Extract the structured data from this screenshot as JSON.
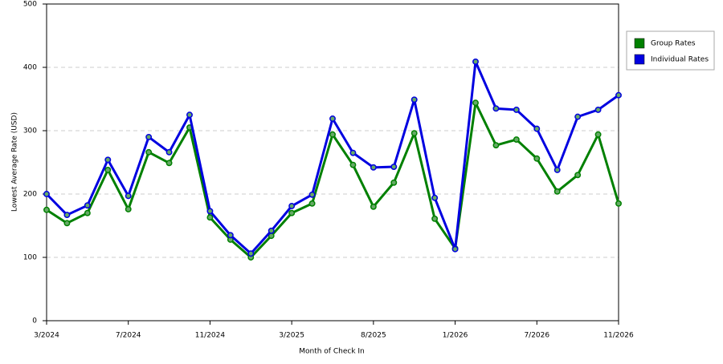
{
  "chart_data": {
    "type": "line",
    "x_label": "Month of Check In",
    "y_label": "Lowest Average Rate (USD)",
    "categories": [
      "3/2024",
      null,
      null,
      null,
      "7/2024",
      null,
      null,
      null,
      "11/2024",
      null,
      null,
      null,
      "3/2025",
      null,
      null,
      null,
      "8/2025",
      null,
      null,
      null,
      "1/2026",
      null,
      null,
      null,
      "7/2026",
      null,
      null,
      null,
      "11/2026"
    ],
    "series": [
      {
        "name": "Group Rates",
        "color": "#008000",
        "values": [
          175,
          154,
          170,
          238,
          176,
          266,
          249,
          305,
          163,
          128,
          100,
          134,
          170,
          185,
          294,
          246,
          180,
          218,
          296,
          161,
          114,
          344,
          277,
          286,
          256,
          204,
          230,
          294,
          185
        ]
      },
      {
        "name": "Individual Rates",
        "color": "#0000e0",
        "values": [
          200,
          167,
          182,
          254,
          197,
          290,
          266,
          325,
          173,
          135,
          106,
          142,
          181,
          199,
          319,
          265,
          242,
          243,
          349,
          194,
          113,
          409,
          335,
          333,
          303,
          238,
          322,
          333,
          356
        ]
      }
    ],
    "ylim": [
      0,
      500
    ],
    "yticks": [
      0,
      100,
      200,
      300,
      400,
      500
    ],
    "grid": true,
    "legend": "right"
  }
}
